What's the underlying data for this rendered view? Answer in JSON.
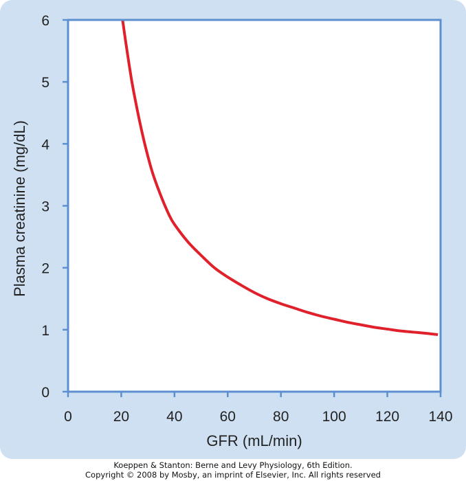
{
  "colors": {
    "panel_background": "#cfe0f2",
    "plot_background": "#ffffff",
    "axis_frame": "#5b8fcf",
    "curve": "#e0202a",
    "text": "#222222"
  },
  "chart_data": {
    "type": "line",
    "title": "",
    "xlabel": "GFR (mL/min)",
    "ylabel": "Plasma creatinine (mg/dL)",
    "xlim": [
      0,
      140
    ],
    "ylim": [
      0,
      6
    ],
    "x_ticks": [
      "0",
      "20",
      "40",
      "60",
      "80",
      "100",
      "120",
      "140"
    ],
    "y_ticks": [
      "0",
      "1",
      "2",
      "3",
      "4",
      "5",
      "6"
    ],
    "grid": false,
    "legend": "none",
    "series": [
      {
        "x": [
          20.5,
          22,
          24,
          26,
          28,
          30,
          32,
          35,
          38,
          40,
          45,
          50,
          55,
          60,
          65,
          70,
          75,
          80,
          85,
          90,
          95,
          100,
          105,
          110,
          115,
          120,
          125,
          130,
          135,
          139
        ],
        "y": [
          6.0,
          5.55,
          5.0,
          4.55,
          4.15,
          3.8,
          3.5,
          3.15,
          2.85,
          2.7,
          2.42,
          2.2,
          2.0,
          1.85,
          1.72,
          1.6,
          1.5,
          1.42,
          1.35,
          1.28,
          1.22,
          1.17,
          1.12,
          1.08,
          1.04,
          1.01,
          0.98,
          0.96,
          0.94,
          0.92
        ]
      }
    ]
  },
  "credit": {
    "line1": "Koeppen & Stanton: Berne and Levy Physiology, 6th Edition.",
    "line2": "Copyright © 2008 by Mosby, an imprint of Elsevier, Inc. All rights reserved"
  }
}
